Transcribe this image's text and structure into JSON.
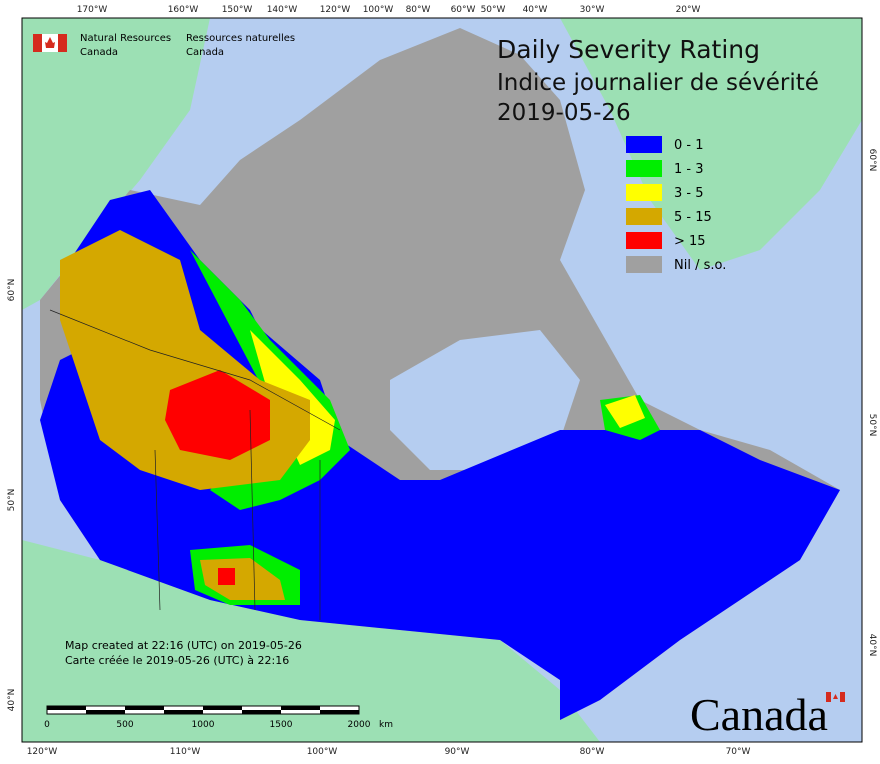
{
  "header": {
    "org_en": "Natural Resources",
    "org_en_2": "Canada",
    "org_fr": "Ressources naturelles",
    "org_fr_2": "Canada"
  },
  "title": {
    "line1": "Daily Severity Rating",
    "line2": "Indice journalier de sévérité",
    "date": "2019-05-26"
  },
  "legend": [
    {
      "label": "0 - 1",
      "color": "#0000ff"
    },
    {
      "label": "1 - 3",
      "color": "#00ee00"
    },
    {
      "label": "3 - 5",
      "color": "#ffff00"
    },
    {
      "label": "5 - 15",
      "color": "#d4a800"
    },
    {
      "label": "> 15",
      "color": "#ff0000"
    },
    {
      "label": "Nil / s.o.",
      "color": "#a0a0a0"
    }
  ],
  "graticule": {
    "top": [
      "170°W",
      "160°W",
      "150°W",
      "140°W",
      "120°W",
      "100°W",
      "80°W",
      "60°W",
      "50°W",
      "40°W",
      "30°W",
      "20°W"
    ],
    "bottom": [
      "120°W",
      "110°W",
      "100°W",
      "90°W",
      "80°W",
      "70°W"
    ],
    "left": [
      "60°N",
      "50°N",
      "40°N"
    ],
    "right": [
      "60°N",
      "50°N",
      "40°N"
    ]
  },
  "credits": {
    "en": "Map created at 22:16 (UTC) on 2019-05-26",
    "fr": "Carte créée le 2019-05-26 (UTC) à 22:16"
  },
  "scale_bar": {
    "labels": [
      "0",
      "500",
      "1000",
      "1500",
      "2000"
    ],
    "unit": "km"
  },
  "wordmark": "Canada"
}
